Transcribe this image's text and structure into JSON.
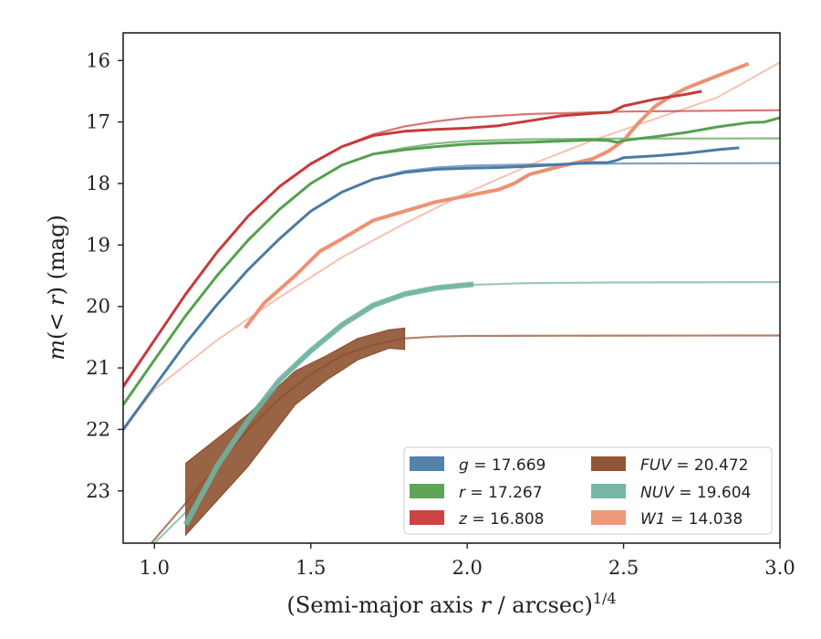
{
  "chart_data": {
    "type": "line",
    "xlabel_main": "(Semi-major axis ",
    "xlabel_r": "r",
    "xlabel_rest": " / arcsec)",
    "xlabel_power": "1/4",
    "ylabel_m": "m",
    "ylabel_lt": "(< ",
    "ylabel_r": "r",
    "ylabel_rest": ") (mag)",
    "xlim": [
      0.9,
      3.0
    ],
    "ylim": [
      23.85,
      15.55
    ],
    "y_inverted": true,
    "xticks": [
      1.0,
      1.5,
      2.0,
      2.5,
      3.0
    ],
    "xtick_labels": [
      "1.0",
      "1.5",
      "2.0",
      "2.5",
      "3.0"
    ],
    "yticks": [
      16,
      17,
      18,
      19,
      20,
      21,
      22,
      23
    ],
    "ytick_labels": [
      "16",
      "17",
      "18",
      "19",
      "20",
      "21",
      "22",
      "23"
    ],
    "legend": {
      "location": "lower-right",
      "entries": [
        {
          "band": "g",
          "text": " = 17.669",
          "color": "#4a7ba7"
        },
        {
          "band": "r",
          "text": " = 17.267",
          "color": "#55a04f"
        },
        {
          "band": "z",
          "text": " = 16.808",
          "color": "#c83a3a"
        },
        {
          "band": "FUV",
          "text": " = 20.472",
          "color": "#8b4d2b"
        },
        {
          "band": "NUV",
          "text": " = 19.604",
          "color": "#6fb3a0"
        },
        {
          "band": "W1",
          "text": " = 14.038",
          "color": "#ec9272"
        }
      ]
    },
    "series": [
      {
        "name": "g",
        "color": "#4a7ba7",
        "model": [
          [
            0.9,
            22.02
          ],
          [
            1.0,
            21.3
          ],
          [
            1.1,
            20.6
          ],
          [
            1.2,
            19.97
          ],
          [
            1.3,
            19.4
          ],
          [
            1.4,
            18.9
          ],
          [
            1.5,
            18.45
          ],
          [
            1.6,
            18.14
          ],
          [
            1.7,
            17.93
          ],
          [
            1.8,
            17.8
          ],
          [
            1.9,
            17.74
          ],
          [
            2.0,
            17.71
          ],
          [
            2.2,
            17.69
          ],
          [
            2.5,
            17.674
          ],
          [
            3.0,
            17.669
          ]
        ],
        "data": [
          [
            0.9,
            22.0
          ],
          [
            1.0,
            21.3
          ],
          [
            1.1,
            20.6
          ],
          [
            1.2,
            19.97
          ],
          [
            1.3,
            19.4
          ],
          [
            1.4,
            18.9
          ],
          [
            1.5,
            18.45
          ],
          [
            1.6,
            18.14
          ],
          [
            1.7,
            17.93
          ],
          [
            1.8,
            17.82
          ],
          [
            1.9,
            17.77
          ],
          [
            2.0,
            17.75
          ],
          [
            2.1,
            17.74
          ],
          [
            2.2,
            17.72
          ],
          [
            2.3,
            17.69
          ],
          [
            2.4,
            17.66
          ],
          [
            2.45,
            17.66
          ],
          [
            2.48,
            17.62
          ],
          [
            2.5,
            17.58
          ],
          [
            2.6,
            17.55
          ],
          [
            2.7,
            17.51
          ],
          [
            2.8,
            17.45
          ],
          [
            2.87,
            17.42
          ]
        ]
      },
      {
        "name": "r",
        "color": "#55a04f",
        "model": [
          [
            0.9,
            21.6
          ],
          [
            1.0,
            20.87
          ],
          [
            1.1,
            20.15
          ],
          [
            1.2,
            19.5
          ],
          [
            1.3,
            18.92
          ],
          [
            1.4,
            18.42
          ],
          [
            1.5,
            18.0
          ],
          [
            1.6,
            17.7
          ],
          [
            1.7,
            17.52
          ],
          [
            1.8,
            17.42
          ],
          [
            1.9,
            17.35
          ],
          [
            2.0,
            17.31
          ],
          [
            2.2,
            17.28
          ],
          [
            2.5,
            17.27
          ],
          [
            3.0,
            17.267
          ]
        ],
        "data": [
          [
            0.9,
            21.6
          ],
          [
            1.0,
            20.87
          ],
          [
            1.1,
            20.15
          ],
          [
            1.2,
            19.5
          ],
          [
            1.3,
            18.92
          ],
          [
            1.4,
            18.42
          ],
          [
            1.5,
            18.0
          ],
          [
            1.6,
            17.7
          ],
          [
            1.7,
            17.52
          ],
          [
            1.8,
            17.45
          ],
          [
            1.9,
            17.4
          ],
          [
            2.0,
            17.36
          ],
          [
            2.1,
            17.34
          ],
          [
            2.2,
            17.33
          ],
          [
            2.3,
            17.31
          ],
          [
            2.4,
            17.29
          ],
          [
            2.45,
            17.3
          ],
          [
            2.48,
            17.33
          ],
          [
            2.5,
            17.3
          ],
          [
            2.6,
            17.24
          ],
          [
            2.7,
            17.17
          ],
          [
            2.8,
            17.08
          ],
          [
            2.9,
            17.01
          ],
          [
            2.95,
            17.0
          ],
          [
            3.0,
            16.93
          ]
        ]
      },
      {
        "name": "z",
        "color": "#c83a3a",
        "model": [
          [
            0.9,
            21.32
          ],
          [
            1.0,
            20.55
          ],
          [
            1.1,
            19.8
          ],
          [
            1.2,
            19.12
          ],
          [
            1.3,
            18.53
          ],
          [
            1.4,
            18.05
          ],
          [
            1.5,
            17.68
          ],
          [
            1.6,
            17.4
          ],
          [
            1.7,
            17.2
          ],
          [
            1.8,
            17.07
          ],
          [
            1.9,
            16.99
          ],
          [
            2.0,
            16.93
          ],
          [
            2.2,
            16.87
          ],
          [
            2.5,
            16.83
          ],
          [
            3.0,
            16.808
          ]
        ],
        "data": [
          [
            0.9,
            21.3
          ],
          [
            1.0,
            20.55
          ],
          [
            1.1,
            19.8
          ],
          [
            1.2,
            19.12
          ],
          [
            1.3,
            18.53
          ],
          [
            1.4,
            18.05
          ],
          [
            1.5,
            17.68
          ],
          [
            1.6,
            17.4
          ],
          [
            1.7,
            17.22
          ],
          [
            1.8,
            17.15
          ],
          [
            1.9,
            17.12
          ],
          [
            2.0,
            17.1
          ],
          [
            2.1,
            17.06
          ],
          [
            2.2,
            16.98
          ],
          [
            2.3,
            16.9
          ],
          [
            2.4,
            16.86
          ],
          [
            2.46,
            16.84
          ],
          [
            2.5,
            16.74
          ],
          [
            2.6,
            16.63
          ],
          [
            2.7,
            16.55
          ],
          [
            2.75,
            16.5
          ]
        ]
      },
      {
        "name": "NUV",
        "color": "#6fb3a0",
        "model": [
          [
            1.0,
            23.85
          ],
          [
            1.1,
            23.35
          ],
          [
            1.2,
            22.6
          ],
          [
            1.3,
            21.8
          ],
          [
            1.4,
            21.2
          ],
          [
            1.5,
            20.72
          ],
          [
            1.6,
            20.3
          ],
          [
            1.7,
            19.98
          ],
          [
            1.8,
            19.8
          ],
          [
            1.9,
            19.7
          ],
          [
            2.0,
            19.65
          ],
          [
            2.2,
            19.62
          ],
          [
            2.5,
            19.61
          ],
          [
            3.0,
            19.604
          ]
        ],
        "data": [
          [
            1.1,
            23.55
          ],
          [
            1.2,
            22.6
          ],
          [
            1.3,
            21.85
          ],
          [
            1.4,
            21.2
          ],
          [
            1.5,
            20.72
          ],
          [
            1.6,
            20.3
          ],
          [
            1.7,
            19.98
          ],
          [
            1.8,
            19.8
          ],
          [
            1.9,
            19.7
          ],
          [
            2.0,
            19.65
          ],
          [
            2.02,
            19.64
          ]
        ]
      },
      {
        "name": "FUV",
        "color": "#8b4d2b",
        "model": [
          [
            0.99,
            23.85
          ],
          [
            1.1,
            23.2
          ],
          [
            1.2,
            22.6
          ],
          [
            1.3,
            22.0
          ],
          [
            1.4,
            21.5
          ],
          [
            1.5,
            21.1
          ],
          [
            1.6,
            20.8
          ],
          [
            1.7,
            20.62
          ],
          [
            1.8,
            20.52
          ],
          [
            1.9,
            20.49
          ],
          [
            2.0,
            20.48
          ],
          [
            2.5,
            20.473
          ],
          [
            3.0,
            20.472
          ]
        ],
        "band_upper": [
          [
            1.1,
            22.55
          ],
          [
            1.3,
            21.75
          ],
          [
            1.45,
            21.05
          ],
          [
            1.55,
            20.8
          ],
          [
            1.65,
            20.52
          ],
          [
            1.75,
            20.38
          ],
          [
            1.8,
            20.35
          ]
        ],
        "band_lower": [
          [
            1.1,
            23.72
          ],
          [
            1.3,
            22.6
          ],
          [
            1.45,
            21.6
          ],
          [
            1.55,
            21.2
          ],
          [
            1.65,
            20.87
          ],
          [
            1.75,
            20.68
          ],
          [
            1.8,
            20.7
          ]
        ]
      },
      {
        "name": "W1",
        "color": "#ec9272",
        "model": [
          [
            0.9,
            22.0
          ],
          [
            1.0,
            21.35
          ],
          [
            1.2,
            20.55
          ],
          [
            1.4,
            19.85
          ],
          [
            1.6,
            19.2
          ],
          [
            1.8,
            18.65
          ],
          [
            2.0,
            18.15
          ],
          [
            2.2,
            17.7
          ],
          [
            2.4,
            17.3
          ],
          [
            2.6,
            16.95
          ],
          [
            2.8,
            16.6
          ],
          [
            3.0,
            16.03
          ]
        ],
        "data": [
          [
            1.29,
            20.35
          ],
          [
            1.35,
            19.95
          ],
          [
            1.45,
            19.5
          ],
          [
            1.53,
            19.1
          ],
          [
            1.6,
            18.9
          ],
          [
            1.7,
            18.6
          ],
          [
            1.8,
            18.45
          ],
          [
            1.9,
            18.3
          ],
          [
            2.0,
            18.2
          ],
          [
            2.1,
            18.1
          ],
          [
            2.15,
            18.0
          ],
          [
            2.2,
            17.85
          ],
          [
            2.3,
            17.72
          ],
          [
            2.4,
            17.6
          ],
          [
            2.45,
            17.48
          ],
          [
            2.5,
            17.3
          ],
          [
            2.55,
            17.0
          ],
          [
            2.6,
            16.75
          ],
          [
            2.65,
            16.58
          ],
          [
            2.7,
            16.45
          ],
          [
            2.8,
            16.25
          ],
          [
            2.9,
            16.05
          ]
        ]
      }
    ]
  }
}
